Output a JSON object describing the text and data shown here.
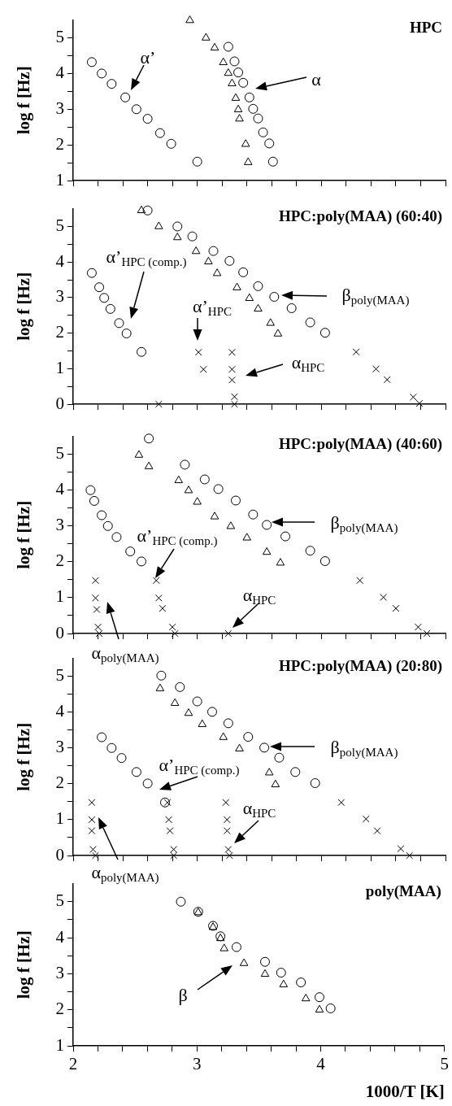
{
  "chart_data": [
    {
      "type": "scatter",
      "title": "HPC",
      "ylabel": "log f [Hz]",
      "xlim": [
        2,
        5
      ],
      "ylim": [
        1,
        5.5
      ],
      "tick_labels": "y",
      "xticks": [
        2,
        {
          "value": 2.2,
          "label": null
        },
        {
          "value": 2.4,
          "label": null
        },
        {
          "value": 2.6,
          "label": null
        },
        {
          "value": 2.8,
          "label": null
        },
        3,
        {
          "value": 3.2,
          "label": null
        },
        {
          "value": 3.4,
          "label": null
        },
        {
          "value": 3.6,
          "label": null
        },
        {
          "value": 3.8,
          "label": null
        },
        4,
        {
          "value": 4.2,
          "label": null
        },
        {
          "value": 4.4,
          "label": null
        },
        {
          "value": 4.6,
          "label": null
        },
        {
          "value": 4.8,
          "label": null
        },
        5
      ],
      "yticks": [
        1,
        {
          "value": 1.5,
          "label": null
        },
        2,
        {
          "value": 2.5,
          "label": null
        },
        3,
        {
          "value": 3.5,
          "label": null
        },
        4,
        {
          "value": 4.5,
          "label": null
        },
        5
      ],
      "series": [
        {
          "marker": "circle",
          "color": "#000000",
          "x": [
            2.15,
            2.23,
            2.31,
            2.42,
            2.51,
            2.6,
            2.7,
            2.79,
            3.0,
            3.25,
            3.3,
            3.33,
            3.37,
            3.42,
            3.45,
            3.49,
            3.53,
            3.58,
            3.61
          ],
          "values": [
            4.32,
            4.0,
            3.71,
            3.33,
            3.0,
            2.73,
            2.33,
            2.03,
            1.53,
            4.75,
            4.34,
            4.03,
            3.74,
            3.33,
            3.01,
            2.74,
            2.35,
            2.04,
            1.53
          ]
        },
        {
          "marker": "triangle",
          "color": "#000000",
          "x": [
            2.94,
            3.07,
            3.14,
            3.21,
            3.25,
            3.28,
            3.31,
            3.33,
            3.34,
            3.39,
            3.41
          ],
          "values": [
            5.49,
            5.0,
            4.72,
            4.31,
            4.01,
            3.72,
            3.31,
            2.99,
            2.73,
            2.02,
            1.51
          ]
        }
      ],
      "annotations": [
        "α’",
        "α"
      ]
    },
    {
      "type": "scatter",
      "title": "HPC:poly(MAA) (60:40)",
      "ylabel": "log f [Hz]",
      "xlim": [
        2,
        5
      ],
      "ylim": [
        0,
        5.5
      ],
      "tick_labels": "y",
      "xticks": [
        2,
        {
          "value": 2.2,
          "label": null
        },
        {
          "value": 2.4,
          "label": null
        },
        {
          "value": 2.6,
          "label": null
        },
        {
          "value": 2.8,
          "label": null
        },
        3,
        {
          "value": 3.2,
          "label": null
        },
        {
          "value": 3.4,
          "label": null
        },
        {
          "value": 3.6,
          "label": null
        },
        {
          "value": 3.8,
          "label": null
        },
        4,
        {
          "value": 4.2,
          "label": null
        },
        {
          "value": 4.4,
          "label": null
        },
        {
          "value": 4.6,
          "label": null
        },
        {
          "value": 4.8,
          "label": null
        },
        5
      ],
      "yticks": [
        0,
        {
          "value": 0.5,
          "label": null
        },
        1,
        {
          "value": 1.5,
          "label": null
        },
        2,
        {
          "value": 2.5,
          "label": null
        },
        3,
        {
          "value": 3.5,
          "label": null
        },
        4,
        {
          "value": 4.5,
          "label": null
        },
        5
      ],
      "series": [
        {
          "marker": "circle",
          "color": "#000000",
          "x": [
            2.15,
            2.21,
            2.25,
            2.3,
            2.37,
            2.43,
            2.55,
            2.6,
            2.84,
            2.96,
            3.13,
            3.26,
            3.37,
            3.49,
            3.62,
            3.76,
            3.91,
            4.03
          ],
          "values": [
            3.69,
            3.29,
            2.99,
            2.68,
            2.28,
            1.99,
            1.47,
            5.45,
            5.0,
            4.72,
            4.31,
            4.03,
            3.71,
            3.32,
            3.02,
            2.7,
            2.3,
            2.01
          ]
        },
        {
          "marker": "triangle",
          "color": "#000000",
          "x": [
            2.55,
            2.69,
            2.84,
            2.99,
            3.09,
            3.16,
            3.32,
            3.42,
            3.49,
            3.59,
            3.65
          ],
          "values": [
            5.45,
            5.0,
            4.69,
            4.3,
            4.01,
            3.68,
            3.28,
            2.98,
            2.68,
            2.28,
            1.98
          ]
        },
        {
          "marker": "cross",
          "color": "#000000",
          "x": [
            2.69,
            3.01,
            3.05,
            3.28,
            3.28,
            3.28,
            3.3,
            3.3,
            4.28,
            4.44,
            4.53,
            4.74,
            4.79
          ],
          "values": [
            0,
            1.46,
            0.98,
            1.46,
            0.98,
            0.68,
            0.21,
            0,
            1.47,
            0.99,
            0.69,
            0.2,
            0.02
          ]
        }
      ],
      "annotations": [
        "α’$_{HPC (comp.)}$",
        "α’$_{HPC}$",
        "β$_{poly(MAA)}$",
        "α$_{HPC}$"
      ]
    },
    {
      "type": "scatter",
      "title": "HPC:poly(MAA) (40:60)",
      "ylabel": "log f [Hz]",
      "xlim": [
        2,
        5
      ],
      "ylim": [
        0,
        5.5
      ],
      "tick_labels": "y",
      "xticks": [
        2,
        {
          "value": 2.2,
          "label": null
        },
        {
          "value": 2.4,
          "label": null
        },
        {
          "value": 2.6,
          "label": null
        },
        {
          "value": 2.8,
          "label": null
        },
        3,
        {
          "value": 3.2,
          "label": null
        },
        {
          "value": 3.4,
          "label": null
        },
        {
          "value": 3.6,
          "label": null
        },
        {
          "value": 3.8,
          "label": null
        },
        4,
        {
          "value": 4.2,
          "label": null
        },
        {
          "value": 4.4,
          "label": null
        },
        {
          "value": 4.6,
          "label": null
        },
        {
          "value": 4.8,
          "label": null
        },
        5
      ],
      "yticks": [
        0,
        {
          "value": 0.5,
          "label": null
        },
        1,
        {
          "value": 1.5,
          "label": null
        },
        2,
        {
          "value": 2.5,
          "label": null
        },
        3,
        {
          "value": 3.5,
          "label": null
        },
        4,
        {
          "value": 4.5,
          "label": null
        },
        5
      ],
      "series": [
        {
          "marker": "circle",
          "color": "#000000",
          "x": [
            2.14,
            2.17,
            2.23,
            2.28,
            2.35,
            2.46,
            2.55,
            2.61,
            2.9,
            3.06,
            3.17,
            3.31,
            3.45,
            3.56,
            3.71,
            3.91,
            4.03
          ],
          "values": [
            4.0,
            3.7,
            3.3,
            3.0,
            2.69,
            2.29,
            2.01,
            5.44,
            4.71,
            4.3,
            4.03,
            3.71,
            3.32,
            3.03,
            2.71,
            2.31,
            2.02
          ]
        },
        {
          "marker": "triangle",
          "color": "#000000",
          "x": [
            2.53,
            2.61,
            2.85,
            2.93,
            3.0,
            3.14,
            3.27,
            3.4,
            3.56,
            3.67
          ],
          "values": [
            4.98,
            4.66,
            4.27,
            3.99,
            3.67,
            3.26,
            2.99,
            2.67,
            2.27,
            1.97
          ]
        },
        {
          "marker": "cross",
          "color": "#000000",
          "x": [
            2.18,
            2.18,
            2.19,
            2.2,
            2.21,
            2.67,
            2.69,
            2.72,
            2.8,
            2.82,
            3.25,
            4.31,
            4.5,
            4.6,
            4.78,
            4.85
          ],
          "values": [
            1.48,
            0.99,
            0.67,
            0.18,
            0,
            1.48,
            0.99,
            0.7,
            0.18,
            0,
            0,
            1.48,
            1.01,
            0.7,
            0.18,
            0
          ]
        }
      ],
      "annotations": [
        "α’$_{HPC (comp.)}$",
        "β$_{poly(MAA)}$",
        "α$_{HPC}$",
        "α$_{poly(MAA)}$"
      ]
    },
    {
      "type": "scatter",
      "title": "HPC:poly(MAA) (20:80)",
      "ylabel": "log f [Hz]",
      "xlim": [
        2,
        5
      ],
      "ylim": [
        0,
        5.5
      ],
      "tick_labels": "y",
      "xticks": [
        2,
        {
          "value": 2.2,
          "label": null
        },
        {
          "value": 2.4,
          "label": null
        },
        {
          "value": 2.6,
          "label": null
        },
        {
          "value": 2.8,
          "label": null
        },
        3,
        {
          "value": 3.2,
          "label": null
        },
        {
          "value": 3.4,
          "label": null
        },
        {
          "value": 3.6,
          "label": null
        },
        {
          "value": 3.8,
          "label": null
        },
        4,
        {
          "value": 4.2,
          "label": null
        },
        {
          "value": 4.4,
          "label": null
        },
        {
          "value": 4.6,
          "label": null
        },
        {
          "value": 4.8,
          "label": null
        },
        5
      ],
      "yticks": [
        0,
        {
          "value": 0.5,
          "label": null
        },
        1,
        {
          "value": 1.5,
          "label": null
        },
        2,
        {
          "value": 2.5,
          "label": null
        },
        3,
        {
          "value": 3.5,
          "label": null
        },
        4,
        {
          "value": 4.5,
          "label": null
        },
        5
      ],
      "series": [
        {
          "marker": "circle",
          "color": "#000000",
          "x": [
            2.23,
            2.31,
            2.39,
            2.51,
            2.6,
            2.71,
            2.74,
            2.86,
            3.0,
            3.12,
            3.25,
            3.41,
            3.54,
            3.66,
            3.79,
            3.95
          ],
          "values": [
            3.3,
            3.0,
            2.72,
            2.33,
            2.01,
            5.02,
            1.48,
            4.7,
            4.3,
            4.01,
            3.69,
            3.31,
            3.01,
            2.73,
            2.33,
            2.02
          ]
        },
        {
          "marker": "triangle",
          "color": "#000000",
          "x": [
            2.7,
            2.82,
            2.93,
            3.04,
            3.21,
            3.34,
            3.58,
            3.63
          ],
          "values": [
            4.66,
            4.25,
            3.97,
            3.66,
            3.3,
            2.98,
            2.31,
            1.98
          ]
        },
        {
          "marker": "cross",
          "color": "#000000",
          "x": [
            2.15,
            2.15,
            2.15,
            2.16,
            2.18,
            2.76,
            2.77,
            2.78,
            2.81,
            2.81,
            3.23,
            3.24,
            3.24,
            3.25,
            3.26,
            4.16,
            4.36,
            4.45,
            4.64,
            4.71
          ],
          "values": [
            1.48,
            1.0,
            0.69,
            0.17,
            0,
            1.48,
            1.0,
            0.69,
            0.17,
            0,
            1.48,
            1.0,
            0.69,
            0.17,
            0,
            1.48,
            1.02,
            0.69,
            0.19,
            0
          ]
        }
      ],
      "annotations": [
        "α’$_{HPC (comp.)}$",
        "β$_{poly(MAA)}$",
        "α$_{HPC}$",
        "α$_{poly(MAA)}$"
      ]
    },
    {
      "type": "scatter",
      "title": "poly(MAA)",
      "xlabel": "1000/T [K]",
      "ylabel": "log f [Hz]",
      "xlim": [
        2,
        5
      ],
      "ylim": [
        1,
        5.5
      ],
      "xticks": [
        2,
        {
          "value": 2.2,
          "label": null
        },
        {
          "value": 2.4,
          "label": null
        },
        {
          "value": 2.6,
          "label": null
        },
        {
          "value": 2.8,
          "label": null
        },
        3,
        {
          "value": 3.2,
          "label": null
        },
        {
          "value": 3.4,
          "label": null
        },
        {
          "value": 3.6,
          "label": null
        },
        {
          "value": 3.8,
          "label": null
        },
        4,
        {
          "value": 4.2,
          "label": null
        },
        {
          "value": 4.4,
          "label": null
        },
        {
          "value": 4.6,
          "label": null
        },
        {
          "value": 4.8,
          "label": null
        },
        5
      ],
      "yticks": [
        1,
        {
          "value": 1.5,
          "label": null
        },
        2,
        {
          "value": 2.5,
          "label": null
        },
        3,
        {
          "value": 3.5,
          "label": null
        },
        4,
        {
          "value": 4.5,
          "label": null
        },
        5
      ],
      "series": [
        {
          "marker": "circle",
          "color": "#000000",
          "x": [
            2.87,
            3.01,
            3.13,
            3.19,
            3.32,
            3.55,
            3.68,
            3.84,
            3.99,
            4.08
          ],
          "values": [
            5.0,
            4.72,
            4.33,
            4.04,
            3.74,
            3.33,
            3.03,
            2.76,
            2.35,
            2.04
          ]
        },
        {
          "marker": "triangle",
          "color": "#000000",
          "x": [
            3.01,
            3.13,
            3.19,
            3.22,
            3.38,
            3.55,
            3.7,
            3.88,
            3.99
          ],
          "values": [
            4.7,
            4.29,
            3.98,
            3.7,
            3.29,
            2.99,
            2.7,
            2.31,
            2.0
          ]
        }
      ],
      "annotations": [
        "β"
      ]
    }
  ]
}
